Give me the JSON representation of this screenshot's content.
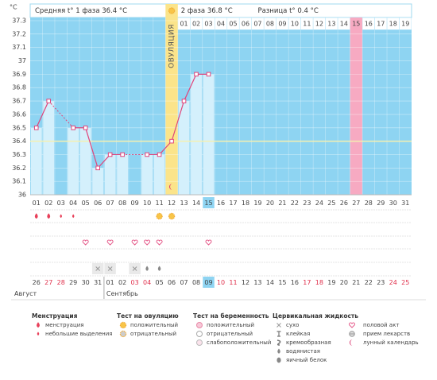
{
  "chart_data": {
    "type": "line",
    "y_unit": "°C",
    "header": {
      "left": "Средняя t° 1 фаза 36.4 °C",
      "right": "2 фаза 36.8 °C",
      "difference": "Разница t° 0.4 °C"
    },
    "ovulation_label": "ОВУЛЯЦИЯ",
    "ovulation_day": "12",
    "forecast_day": "27",
    "today": "15",
    "coverline": 36.4,
    "categories": [
      "01",
      "02",
      "03",
      "04",
      "05",
      "06",
      "07",
      "08",
      "09",
      "10",
      "11",
      "12",
      "13",
      "14",
      "15",
      "16",
      "17",
      "18",
      "19",
      "20",
      "21",
      "22",
      "23",
      "24",
      "25",
      "26",
      "27",
      "28",
      "29",
      "30",
      "31"
    ],
    "series": [
      {
        "color": "#e0457b",
        "values": [
          36.5,
          36.7,
          null,
          36.5,
          36.5,
          36.2,
          36.3,
          36.3,
          null,
          36.3,
          36.3,
          36.4,
          36.7,
          36.9,
          36.9,
          null,
          null,
          null,
          null,
          null,
          null,
          null,
          null,
          null,
          null,
          null,
          null,
          null,
          null,
          null,
          null
        ]
      }
    ],
    "phase2_days": [
      "01",
      "02",
      "03",
      "04",
      "05",
      "06",
      "07",
      "08",
      "09",
      "10",
      "11",
      "12",
      "13",
      "14",
      "15",
      "16",
      "17",
      "18",
      "19"
    ],
    "ylim": [
      36,
      37.3
    ],
    "yticks": [
      37.3,
      37.2,
      37.1,
      37,
      36.9,
      36.8,
      36.7,
      36.6,
      36.5,
      36.4,
      36.3,
      36.2,
      36.1,
      36
    ],
    "grid": true,
    "calendar": {
      "dates": [
        "26",
        "27",
        "28",
        "29",
        "30",
        "31",
        "01",
        "02",
        "03",
        "04",
        "05",
        "06",
        "07",
        "08",
        "09",
        "10",
        "11",
        "12",
        "13",
        "14",
        "15",
        "16",
        "17",
        "18",
        "19",
        "20",
        "21",
        "22",
        "23",
        "24",
        "25"
      ],
      "weekends": [
        "27",
        "28",
        "03",
        "04",
        "10",
        "11",
        "17",
        "18",
        "24",
        "25"
      ],
      "months": [
        {
          "label": "Август",
          "from": "26"
        },
        {
          "label": "Сентябрь",
          "from": "01"
        }
      ]
    }
  },
  "legend": [
    {
      "title": "Менструация",
      "items": [
        {
          "label": "менструация",
          "days": [
            "01",
            "02"
          ]
        },
        {
          "label": "небольшие выделения",
          "days": [
            "03",
            "04"
          ]
        }
      ]
    },
    {
      "title": "Тест на овуляцию",
      "items": [
        {
          "label": "положительный",
          "days": [
            "11",
            "12"
          ]
        },
        {
          "label": "отрицательный"
        }
      ]
    },
    {
      "title": "Тест на беременность",
      "items": [
        {
          "label": "положительный"
        },
        {
          "label": "отрицательный"
        },
        {
          "label": "слабоположительный"
        }
      ]
    },
    {
      "title": "Цервикальная жидкость",
      "items": [
        {
          "label": "сухо",
          "days": [
            "06",
            "07",
            "09"
          ]
        },
        {
          "label": "клейкая"
        },
        {
          "label": "кремообразная"
        },
        {
          "label": "водянистая",
          "days": [
            "10",
            "11"
          ]
        },
        {
          "label": "яичный белок"
        }
      ]
    },
    {
      "items": [
        {
          "label": "половой акт",
          "days": [
            "05",
            "07",
            "09",
            "10",
            "11",
            "15"
          ]
        },
        {
          "label": "прием лекарств"
        },
        {
          "label": "лунный календарь",
          "days": [
            "12"
          ]
        }
      ]
    }
  ]
}
